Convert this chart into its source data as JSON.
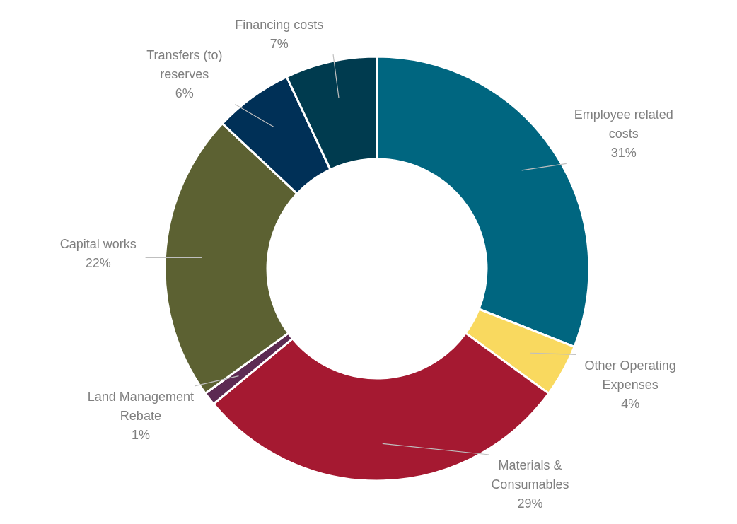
{
  "chart_data": {
    "type": "donut",
    "categories": [
      "Employee related costs",
      "Other Operating Expenses",
      "Materials & Consumables",
      "Land Management Rebate",
      "Capital works",
      "Transfers (to) reserves",
      "Financing costs"
    ],
    "values": [
      31,
      4,
      29,
      1,
      22,
      6,
      7
    ],
    "colors": [
      "#006680",
      "#f9d95f",
      "#a51931",
      "#5c2a52",
      "#5c6132",
      "#003057",
      "#003b4f"
    ],
    "value_labels": [
      "31%",
      "4%",
      "29%",
      "1%",
      "22%",
      "6%",
      "7%"
    ]
  }
}
